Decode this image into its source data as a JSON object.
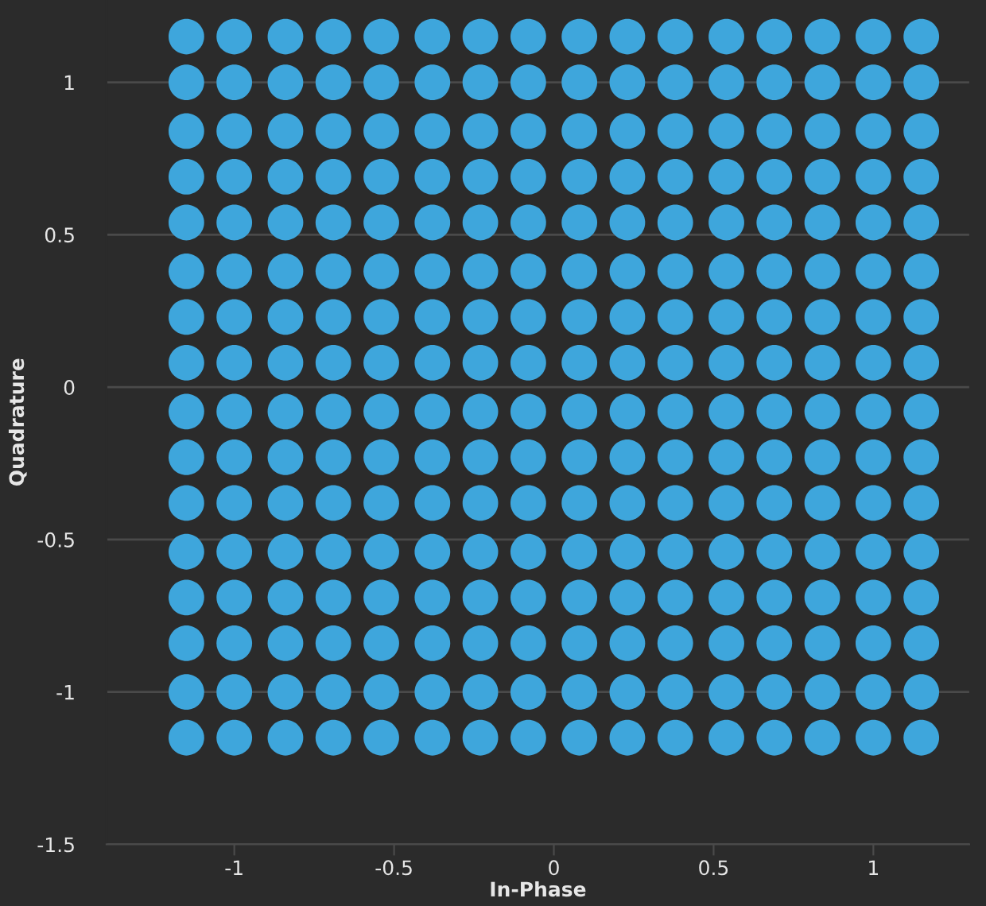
{
  "chart_data": {
    "type": "scatter",
    "xlabel": "In-Phase",
    "ylabel": "Quadrature",
    "xlim": [
      -1.4,
      1.3
    ],
    "ylim": [
      -1.5,
      1.27
    ],
    "xticks": [
      -1,
      -0.5,
      0,
      0.5,
      1
    ],
    "yticks": [
      -1.5,
      -1,
      -0.5,
      0,
      0.5,
      1
    ],
    "grid": "y",
    "marker": "circle",
    "series": [
      {
        "color": "#3ea6dc",
        "x": [
          -1.15,
          -1.0,
          -0.84,
          -0.69,
          -0.54,
          -0.38,
          -0.23,
          -0.08,
          0.08,
          0.23,
          0.38,
          0.54,
          0.69,
          0.84,
          1.0,
          1.15,
          -1.15,
          -1.0,
          -0.84,
          -0.69,
          -0.54,
          -0.38,
          -0.23,
          -0.08,
          0.08,
          0.23,
          0.38,
          0.54,
          0.69,
          0.84,
          1.0,
          1.15,
          -1.15,
          -1.0,
          -0.84,
          -0.69,
          -0.54,
          -0.38,
          -0.23,
          -0.08,
          0.08,
          0.23,
          0.38,
          0.54,
          0.69,
          0.84,
          1.0,
          1.15,
          -1.15,
          -1.0,
          -0.84,
          -0.69,
          -0.54,
          -0.38,
          -0.23,
          -0.08,
          0.08,
          0.23,
          0.38,
          0.54,
          0.69,
          0.84,
          1.0,
          1.15,
          -1.15,
          -1.0,
          -0.84,
          -0.69,
          -0.54,
          -0.38,
          -0.23,
          -0.08,
          0.08,
          0.23,
          0.38,
          0.54,
          0.69,
          0.84,
          1.0,
          1.15,
          -1.15,
          -1.0,
          -0.84,
          -0.69,
          -0.54,
          -0.38,
          -0.23,
          -0.08,
          0.08,
          0.23,
          0.38,
          0.54,
          0.69,
          0.84,
          1.0,
          1.15,
          -1.15,
          -1.0,
          -0.84,
          -0.69,
          -0.54,
          -0.38,
          -0.23,
          -0.08,
          0.08,
          0.23,
          0.38,
          0.54,
          0.69,
          0.84,
          1.0,
          1.15,
          -1.15,
          -1.0,
          -0.84,
          -0.69,
          -0.54,
          -0.38,
          -0.23,
          -0.08,
          0.08,
          0.23,
          0.38,
          0.54,
          0.69,
          0.84,
          1.0,
          1.15,
          -1.15,
          -1.0,
          -0.84,
          -0.69,
          -0.54,
          -0.38,
          -0.23,
          -0.08,
          0.08,
          0.23,
          0.38,
          0.54,
          0.69,
          0.84,
          1.0,
          1.15,
          -1.15,
          -1.0,
          -0.84,
          -0.69,
          -0.54,
          -0.38,
          -0.23,
          -0.08,
          0.08,
          0.23,
          0.38,
          0.54,
          0.69,
          0.84,
          1.0,
          1.15,
          -1.15,
          -1.0,
          -0.84,
          -0.69,
          -0.54,
          -0.38,
          -0.23,
          -0.08,
          0.08,
          0.23,
          0.38,
          0.54,
          0.69,
          0.84,
          1.0,
          1.15,
          -1.15,
          -1.0,
          -0.84,
          -0.69,
          -0.54,
          -0.38,
          -0.23,
          -0.08,
          0.08,
          0.23,
          0.38,
          0.54,
          0.69,
          0.84,
          1.0,
          1.15,
          -1.15,
          -1.0,
          -0.84,
          -0.69,
          -0.54,
          -0.38,
          -0.23,
          -0.08,
          0.08,
          0.23,
          0.38,
          0.54,
          0.69,
          0.84,
          1.0,
          1.15,
          -1.15,
          -1.0,
          -0.84,
          -0.69,
          -0.54,
          -0.38,
          -0.23,
          -0.08,
          0.08,
          0.23,
          0.38,
          0.54,
          0.69,
          0.84,
          1.0,
          1.15,
          -1.15,
          -1.0,
          -0.84,
          -0.69,
          -0.54,
          -0.38,
          -0.23,
          -0.08,
          0.08,
          0.23,
          0.38,
          0.54,
          0.69,
          0.84,
          1.0,
          1.15,
          -1.15,
          -1.0,
          -0.84,
          -0.69,
          -0.54,
          -0.38,
          -0.23,
          -0.08,
          0.08,
          0.23,
          0.38,
          0.54,
          0.69,
          0.84,
          1.0,
          1.15
        ],
        "values": [
          1.15,
          1.15,
          1.15,
          1.15,
          1.15,
          1.15,
          1.15,
          1.15,
          1.15,
          1.15,
          1.15,
          1.15,
          1.15,
          1.15,
          1.15,
          1.15,
          1.0,
          1.0,
          1.0,
          1.0,
          1.0,
          1.0,
          1.0,
          1.0,
          1.0,
          1.0,
          1.0,
          1.0,
          1.0,
          1.0,
          1.0,
          1.0,
          0.84,
          0.84,
          0.84,
          0.84,
          0.84,
          0.84,
          0.84,
          0.84,
          0.84,
          0.84,
          0.84,
          0.84,
          0.84,
          0.84,
          0.84,
          0.84,
          0.69,
          0.69,
          0.69,
          0.69,
          0.69,
          0.69,
          0.69,
          0.69,
          0.69,
          0.69,
          0.69,
          0.69,
          0.69,
          0.69,
          0.69,
          0.69,
          0.54,
          0.54,
          0.54,
          0.54,
          0.54,
          0.54,
          0.54,
          0.54,
          0.54,
          0.54,
          0.54,
          0.54,
          0.54,
          0.54,
          0.54,
          0.54,
          0.38,
          0.38,
          0.38,
          0.38,
          0.38,
          0.38,
          0.38,
          0.38,
          0.38,
          0.38,
          0.38,
          0.38,
          0.38,
          0.38,
          0.38,
          0.38,
          0.23,
          0.23,
          0.23,
          0.23,
          0.23,
          0.23,
          0.23,
          0.23,
          0.23,
          0.23,
          0.23,
          0.23,
          0.23,
          0.23,
          0.23,
          0.23,
          0.08,
          0.08,
          0.08,
          0.08,
          0.08,
          0.08,
          0.08,
          0.08,
          0.08,
          0.08,
          0.08,
          0.08,
          0.08,
          0.08,
          0.08,
          0.08,
          -0.08,
          -0.08,
          -0.08,
          -0.08,
          -0.08,
          -0.08,
          -0.08,
          -0.08,
          -0.08,
          -0.08,
          -0.08,
          -0.08,
          -0.08,
          -0.08,
          -0.08,
          -0.08,
          -0.23,
          -0.23,
          -0.23,
          -0.23,
          -0.23,
          -0.23,
          -0.23,
          -0.23,
          -0.23,
          -0.23,
          -0.23,
          -0.23,
          -0.23,
          -0.23,
          -0.23,
          -0.23,
          -0.38,
          -0.38,
          -0.38,
          -0.38,
          -0.38,
          -0.38,
          -0.38,
          -0.38,
          -0.38,
          -0.38,
          -0.38,
          -0.38,
          -0.38,
          -0.38,
          -0.38,
          -0.38,
          -0.54,
          -0.54,
          -0.54,
          -0.54,
          -0.54,
          -0.54,
          -0.54,
          -0.54,
          -0.54,
          -0.54,
          -0.54,
          -0.54,
          -0.54,
          -0.54,
          -0.54,
          -0.54,
          -0.69,
          -0.69,
          -0.69,
          -0.69,
          -0.69,
          -0.69,
          -0.69,
          -0.69,
          -0.69,
          -0.69,
          -0.69,
          -0.69,
          -0.69,
          -0.69,
          -0.69,
          -0.69,
          -0.84,
          -0.84,
          -0.84,
          -0.84,
          -0.84,
          -0.84,
          -0.84,
          -0.84,
          -0.84,
          -0.84,
          -0.84,
          -0.84,
          -0.84,
          -0.84,
          -0.84,
          -0.84,
          -1.0,
          -1.0,
          -1.0,
          -1.0,
          -1.0,
          -1.0,
          -1.0,
          -1.0,
          -1.0,
          -1.0,
          -1.0,
          -1.0,
          -1.0,
          -1.0,
          -1.0,
          -1.0,
          -1.15,
          -1.15,
          -1.15,
          -1.15,
          -1.15,
          -1.15,
          -1.15,
          -1.15,
          -1.15,
          -1.15,
          -1.15,
          -1.15,
          -1.15,
          -1.15,
          -1.15,
          -1.15
        ]
      }
    ]
  }
}
